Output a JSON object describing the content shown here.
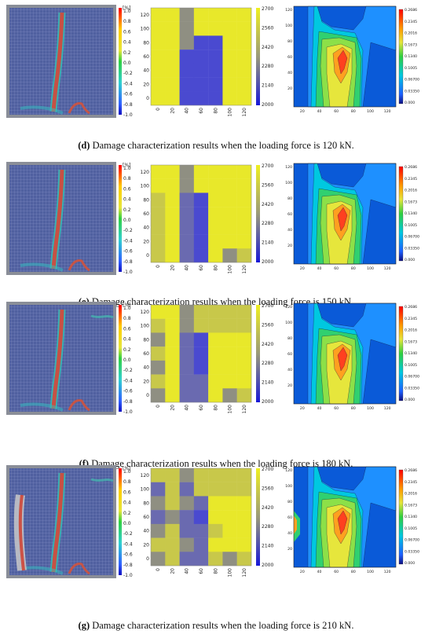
{
  "figure": {
    "rows": [
      {
        "id": "d",
        "caption_letter": "(d)",
        "caption_text": " Damage characterization results when the loading force is 120 kN.",
        "grid": [
          [
            2700,
            2700,
            2420,
            2700,
            2700,
            2700,
            2700
          ],
          [
            2700,
            2700,
            2420,
            2700,
            2700,
            2700,
            2700
          ],
          [
            2700,
            2700,
            2420,
            2140,
            2140,
            2700,
            2700
          ],
          [
            2700,
            2700,
            2140,
            2140,
            2140,
            2700,
            2700
          ],
          [
            2700,
            2700,
            2140,
            2140,
            2140,
            2700,
            2700
          ],
          [
            2700,
            2700,
            2140,
            2140,
            2140,
            2700,
            2700
          ],
          [
            2700,
            2700,
            2140,
            2140,
            2140,
            2700,
            2700
          ]
        ],
        "contour_ticks": [
          "0.2686",
          "0.2345",
          "0.2016",
          "0.1673",
          "0.1340",
          "0.1005",
          "0.06700",
          "0.03350",
          "0.000"
        ]
      },
      {
        "id": "e",
        "caption_letter": "(e)",
        "caption_text": " Damage characterization results when the loading force is 150 kN.",
        "grid": [
          [
            2700,
            2700,
            2420,
            2700,
            2700,
            2700,
            2700
          ],
          [
            2700,
            2700,
            2420,
            2700,
            2700,
            2700,
            2700
          ],
          [
            2560,
            2700,
            2280,
            2140,
            2700,
            2700,
            2700
          ],
          [
            2560,
            2700,
            2280,
            2140,
            2700,
            2700,
            2700
          ],
          [
            2560,
            2700,
            2280,
            2140,
            2700,
            2700,
            2700
          ],
          [
            2560,
            2700,
            2280,
            2140,
            2700,
            2700,
            2700
          ],
          [
            2560,
            2700,
            2280,
            2140,
            2700,
            2420,
            2560
          ]
        ],
        "contour_ticks": [
          "0.2686",
          "0.2345",
          "0.2016",
          "0.1673",
          "0.1340",
          "0.1005",
          "0.06700",
          "0.03350",
          "0.000"
        ]
      },
      {
        "id": "f",
        "caption_letter": "(f)",
        "caption_text": " Damage characterization results when the loading force is 180 kN.",
        "grid": [
          [
            2700,
            2700,
            2420,
            2560,
            2560,
            2560,
            2560
          ],
          [
            2560,
            2700,
            2420,
            2560,
            2560,
            2560,
            2560
          ],
          [
            2420,
            2700,
            2280,
            2140,
            2700,
            2700,
            2700
          ],
          [
            2560,
            2700,
            2280,
            2140,
            2700,
            2700,
            2700
          ],
          [
            2420,
            2700,
            2280,
            2140,
            2700,
            2700,
            2700
          ],
          [
            2560,
            2700,
            2280,
            2280,
            2700,
            2700,
            2700
          ],
          [
            2420,
            2700,
            2280,
            2280,
            2700,
            2420,
            2560
          ]
        ],
        "contour_ticks": [
          "0.2686",
          "0.2345",
          "0.2016",
          "0.1673",
          "0.1340",
          "0.1005",
          "0.06700",
          "0.03350",
          "0.000"
        ]
      },
      {
        "id": "g",
        "caption_letter": "(g)",
        "caption_text": " Damage characterization results when the loading force is 210 kN.",
        "grid": [
          [
            2560,
            2560,
            2420,
            2560,
            2560,
            2560,
            2560
          ],
          [
            2280,
            2560,
            2280,
            2560,
            2560,
            2560,
            2560
          ],
          [
            2420,
            2560,
            2420,
            2280,
            2700,
            2700,
            2700
          ],
          [
            2280,
            2420,
            2280,
            2140,
            2700,
            2700,
            2700
          ],
          [
            2420,
            2560,
            2280,
            2280,
            2560,
            2700,
            2700
          ],
          [
            2560,
            2560,
            2420,
            2280,
            2700,
            2700,
            2700
          ],
          [
            2420,
            2560,
            2280,
            2280,
            2560,
            2420,
            2560
          ]
        ],
        "contour_ticks": [
          "0.2686",
          "0.2345",
          "0.2016",
          "0.1673",
          "0.1340",
          "0.1005",
          "0.06700",
          "0.03350",
          "0.000"
        ]
      }
    ],
    "strain_colorbar": {
      "unit": "[%]",
      "ticks": [
        "1.0",
        "0.8",
        "0.6",
        "0.4",
        "0.2",
        "0.0",
        "-0.2",
        "-0.4",
        "-0.6",
        "-0.8",
        "-1.0"
      ]
    },
    "grid_colorbar": {
      "ticks": [
        "2700",
        "2560",
        "2420",
        "2280",
        "2140",
        "2000"
      ]
    },
    "grid_axes": {
      "x_ticks": [
        "0",
        "20",
        "40",
        "60",
        "80",
        "100",
        "120"
      ],
      "y_ticks": [
        "120",
        "100",
        "80",
        "60",
        "40",
        "20",
        "0"
      ]
    },
    "contour_axes": {
      "x_ticks": [
        "20",
        "40",
        "60",
        "80",
        "100",
        "120"
      ],
      "y_ticks": [
        "120",
        "100",
        "80",
        "60",
        "40",
        "20"
      ]
    }
  }
}
